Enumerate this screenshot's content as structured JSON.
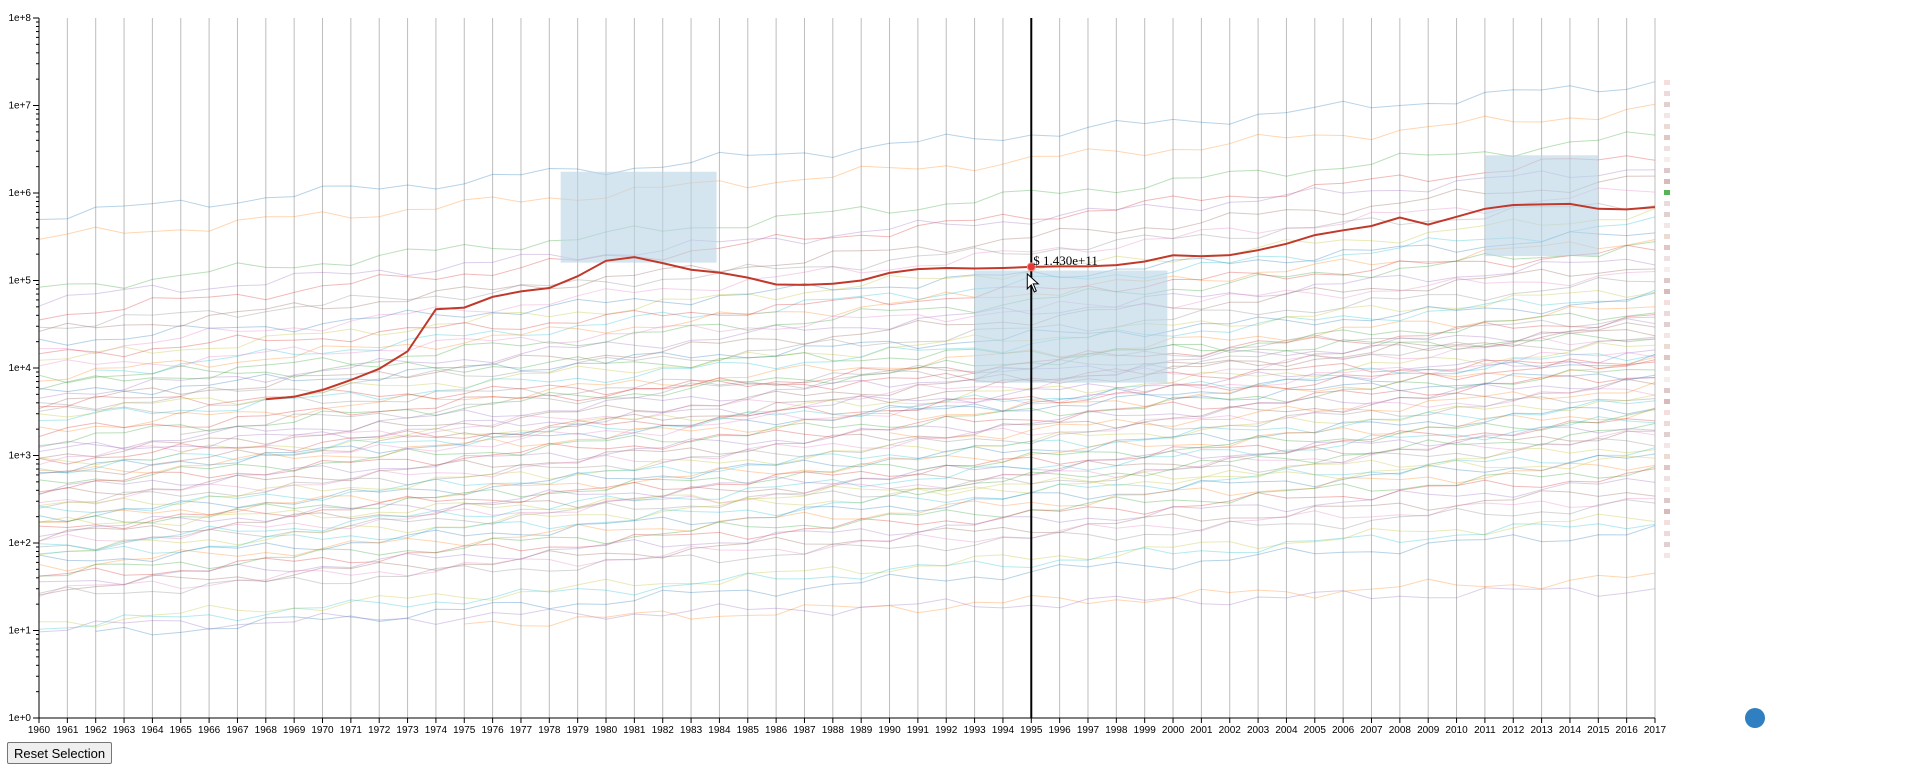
{
  "controls": {
    "reset_label": "Reset Selection"
  },
  "colors": {
    "highlight": "#c0392b",
    "brush": "#b7d3e6",
    "cursor_line": "#000000",
    "grid": "#bdbdbd",
    "handle": "#2f7fc1"
  },
  "readout": {
    "text": "$ 1.430e+11",
    "year": 1995
  },
  "chart_data": {
    "type": "line",
    "y_scale": "log",
    "ylim": [
      1,
      100000000
    ],
    "y_ticks": [
      "1e+0",
      "1e+1",
      "1e+2",
      "1e+3",
      "1e+4",
      "1e+5",
      "1e+6",
      "1e+7",
      "1e+8"
    ],
    "x": [
      1960,
      1961,
      1962,
      1963,
      1964,
      1965,
      1966,
      1967,
      1968,
      1969,
      1970,
      1971,
      1972,
      1973,
      1974,
      1975,
      1976,
      1977,
      1978,
      1979,
      1980,
      1981,
      1982,
      1983,
      1984,
      1985,
      1986,
      1987,
      1988,
      1989,
      1990,
      1991,
      1992,
      1993,
      1994,
      1995,
      1996,
      1997,
      1998,
      1999,
      2000,
      2001,
      2002,
      2003,
      2004,
      2005,
      2006,
      2007,
      2008,
      2009,
      2010,
      2011,
      2012,
      2013,
      2014,
      2015,
      2016,
      2017
    ],
    "x_tick_labels": [
      "1960",
      "1961",
      "1962",
      "1963",
      "1964",
      "1965",
      "1966",
      "1967",
      "1968",
      "1969",
      "1970",
      "1971",
      "1972",
      "1973",
      "1974",
      "1975",
      "1976",
      "1977",
      "1978",
      "1979",
      "1980",
      "1981",
      "1982",
      "1983",
      "1984",
      "1985",
      "1986",
      "1987",
      "1988",
      "1989",
      "1990",
      "1991",
      "1992",
      "1993",
      "1994",
      "1995",
      "1996",
      "1997",
      "1998",
      "1999",
      "2000",
      "2001",
      "2002",
      "2003",
      "2004",
      "2005",
      "2006",
      "2007",
      "2008",
      "2009",
      "2010",
      "2011",
      "2012",
      "2013",
      "2014",
      "2015",
      "2016",
      "2017"
    ],
    "highlighted_series": {
      "years": [
        1968,
        1969,
        1970,
        1971,
        1972,
        1973,
        1974,
        1975,
        1976,
        1977,
        1978,
        1979,
        1980,
        1981,
        1982,
        1983,
        1984,
        1985,
        1986,
        1987,
        1988,
        1989,
        1990,
        1991,
        1992,
        1993,
        1994,
        1995,
        1996,
        1997,
        1998,
        1999,
        2000,
        2001,
        2002,
        2003,
        2004,
        2005,
        2006,
        2007,
        2008,
        2009,
        2010,
        2011,
        2012,
        2013,
        2014,
        2015,
        2016,
        2017
      ],
      "values": [
        4400,
        4700,
        5600,
        7300,
        9800,
        15500,
        47000,
        49000,
        65000,
        75000,
        82000,
        112000,
        168000,
        185000,
        158000,
        133000,
        123000,
        108000,
        90000,
        89000,
        92000,
        100000,
        122000,
        135000,
        139000,
        137000,
        139000,
        143000,
        145000,
        145000,
        150000,
        165000,
        194000,
        189000,
        195000,
        222000,
        263000,
        330000,
        375000,
        420000,
        525000,
        435000,
        535000,
        660000,
        730000,
        740000,
        750000,
        660000,
        650000,
        690000
      ]
    },
    "background_series": [
      {
        "start": 1960,
        "end": 2017,
        "v0": 550000,
        "v1": 18500000
      },
      {
        "start": 1960,
        "end": 2017,
        "v0": 300000,
        "v1": 9000000
      },
      {
        "start": 1960,
        "end": 2017,
        "v0": 80000,
        "v1": 4500000
      },
      {
        "start": 1960,
        "end": 2017,
        "v0": 40000,
        "v1": 2800000
      },
      {
        "start": 1960,
        "end": 2017,
        "v0": 60000,
        "v1": 2000000
      },
      {
        "start": 1960,
        "end": 2017,
        "v0": 25000,
        "v1": 1500000
      },
      {
        "start": 1960,
        "end": 2017,
        "v0": 15000,
        "v1": 1100000
      },
      {
        "start": 1960,
        "end": 2017,
        "v0": 30000,
        "v1": 800000
      },
      {
        "start": 1960,
        "end": 2017,
        "v0": 12000,
        "v1": 600000
      },
      {
        "start": 1962,
        "end": 2017,
        "v0": 9000,
        "v1": 450000
      },
      {
        "start": 1960,
        "end": 2017,
        "v0": 20000,
        "v1": 350000
      },
      {
        "start": 1960,
        "end": 2017,
        "v0": 8000,
        "v1": 300000
      },
      {
        "start": 1960,
        "end": 2017,
        "v0": 6000,
        "v1": 250000
      },
      {
        "start": 1960,
        "end": 2017,
        "v0": 14000,
        "v1": 220000
      },
      {
        "start": 1960,
        "end": 2017,
        "v0": 5000,
        "v1": 180000
      },
      {
        "start": 1960,
        "end": 2017,
        "v0": 4000,
        "v1": 150000
      },
      {
        "start": 1960,
        "end": 2017,
        "v0": 10000,
        "v1": 120000
      },
      {
        "start": 1960,
        "end": 2017,
        "v0": 3500,
        "v1": 100000
      },
      {
        "start": 1960,
        "end": 2017,
        "v0": 3000,
        "v1": 80000
      },
      {
        "start": 1960,
        "end": 2017,
        "v0": 2500,
        "v1": 70000
      },
      {
        "start": 1960,
        "end": 2017,
        "v0": 5000,
        "v1": 60000
      },
      {
        "start": 1960,
        "end": 2017,
        "v0": 2000,
        "v1": 50000
      },
      {
        "start": 1960,
        "end": 2017,
        "v0": 1500,
        "v1": 45000
      },
      {
        "start": 1960,
        "end": 2017,
        "v0": 1800,
        "v1": 38000
      },
      {
        "start": 1960,
        "end": 2017,
        "v0": 1200,
        "v1": 32000
      },
      {
        "start": 1960,
        "end": 2017,
        "v0": 1000,
        "v1": 28000
      },
      {
        "start": 1960,
        "end": 2017,
        "v0": 900,
        "v1": 24000
      },
      {
        "start": 1960,
        "end": 2017,
        "v0": 3000,
        "v1": 21000
      },
      {
        "start": 1960,
        "end": 2017,
        "v0": 800,
        "v1": 18000
      },
      {
        "start": 1960,
        "end": 2017,
        "v0": 700,
        "v1": 15000
      },
      {
        "start": 1960,
        "end": 2017,
        "v0": 650,
        "v1": 13000
      },
      {
        "start": 1960,
        "end": 2017,
        "v0": 600,
        "v1": 11000
      },
      {
        "start": 1960,
        "end": 2017,
        "v0": 500,
        "v1": 9500
      },
      {
        "start": 1960,
        "end": 2017,
        "v0": 450,
        "v1": 8500
      },
      {
        "start": 1960,
        "end": 2017,
        "v0": 400,
        "v1": 7500
      },
      {
        "start": 1960,
        "end": 2017,
        "v0": 350,
        "v1": 6500
      },
      {
        "start": 1960,
        "end": 2017,
        "v0": 300,
        "v1": 5800
      },
      {
        "start": 1960,
        "end": 2017,
        "v0": 280,
        "v1": 5000
      },
      {
        "start": 1960,
        "end": 2017,
        "v0": 250,
        "v1": 4500
      },
      {
        "start": 1960,
        "end": 2017,
        "v0": 220,
        "v1": 4000
      },
      {
        "start": 1960,
        "end": 2017,
        "v0": 200,
        "v1": 3600
      },
      {
        "start": 1960,
        "end": 2017,
        "v0": 180,
        "v1": 3200
      },
      {
        "start": 1960,
        "end": 2017,
        "v0": 160,
        "v1": 2800
      },
      {
        "start": 1960,
        "end": 2017,
        "v0": 150,
        "v1": 2500
      },
      {
        "start": 1960,
        "end": 2017,
        "v0": 140,
        "v1": 2200
      },
      {
        "start": 1960,
        "end": 2017,
        "v0": 120,
        "v1": 1900
      },
      {
        "start": 1960,
        "end": 2017,
        "v0": 100,
        "v1": 1700
      },
      {
        "start": 1960,
        "end": 2017,
        "v0": 90,
        "v1": 1500
      },
      {
        "start": 1960,
        "end": 2017,
        "v0": 80,
        "v1": 1300
      },
      {
        "start": 1960,
        "end": 2017,
        "v0": 70,
        "v1": 1100
      },
      {
        "start": 1960,
        "end": 2017,
        "v0": 60,
        "v1": 950
      },
      {
        "start": 1960,
        "end": 2017,
        "v0": 55,
        "v1": 800
      },
      {
        "start": 1960,
        "end": 2017,
        "v0": 45,
        "v1": 700
      },
      {
        "start": 1960,
        "end": 2017,
        "v0": 40,
        "v1": 600
      },
      {
        "start": 1960,
        "end": 2017,
        "v0": 35,
        "v1": 500
      },
      {
        "start": 1960,
        "end": 2017,
        "v0": 30,
        "v1": 400
      },
      {
        "start": 1960,
        "end": 2017,
        "v0": 28,
        "v1": 330
      },
      {
        "start": 1960,
        "end": 2017,
        "v0": 25,
        "v1": 280
      },
      {
        "start": 1960,
        "end": 2017,
        "v0": 12,
        "v1": 200
      },
      {
        "start": 1960,
        "end": 2017,
        "v0": 11,
        "v1": 180
      },
      {
        "start": 1962,
        "end": 2017,
        "v0": 9,
        "v1": 140
      },
      {
        "start": 1975,
        "end": 2017,
        "v0": 12,
        "v1": 40
      },
      {
        "start": 1960,
        "end": 2017,
        "v0": 8000,
        "v1": 22000
      },
      {
        "start": 1960,
        "end": 2017,
        "v0": 4000,
        "v1": 12000
      },
      {
        "start": 1960,
        "end": 2017,
        "v0": 1100,
        "v1": 14000
      },
      {
        "start": 1960,
        "end": 2017,
        "v0": 600,
        "v1": 30000
      },
      {
        "start": 1970,
        "end": 2017,
        "v0": 1000,
        "v1": 16000
      },
      {
        "start": 1965,
        "end": 2017,
        "v0": 2000,
        "v1": 40000
      },
      {
        "start": 1960,
        "end": 2017,
        "v0": 160,
        "v1": 900
      },
      {
        "start": 1960,
        "end": 2017,
        "v0": 90,
        "v1": 2600
      },
      {
        "start": 1990,
        "end": 2017,
        "v0": 3000,
        "v1": 9000
      },
      {
        "start": 1990,
        "end": 2017,
        "v0": 1500,
        "v1": 6000
      },
      {
        "start": 1990,
        "end": 2017,
        "v0": 400,
        "v1": 2000
      },
      {
        "start": 1960,
        "end": 2017,
        "v0": 900,
        "v1": 12000
      },
      {
        "start": 1960,
        "end": 2017,
        "v0": 11,
        "v1": 30
      }
    ],
    "brushes": [
      {
        "x0": 1978.4,
        "x1": 1983.9,
        "y0": 160000,
        "y1": 1750000
      },
      {
        "x0": 1993.0,
        "x1": 1999.8,
        "y0": 6800,
        "y1": 130000
      },
      {
        "x0": 2011.0,
        "x1": 2015.0,
        "y0": 190000,
        "y1": 2700000
      }
    ]
  }
}
